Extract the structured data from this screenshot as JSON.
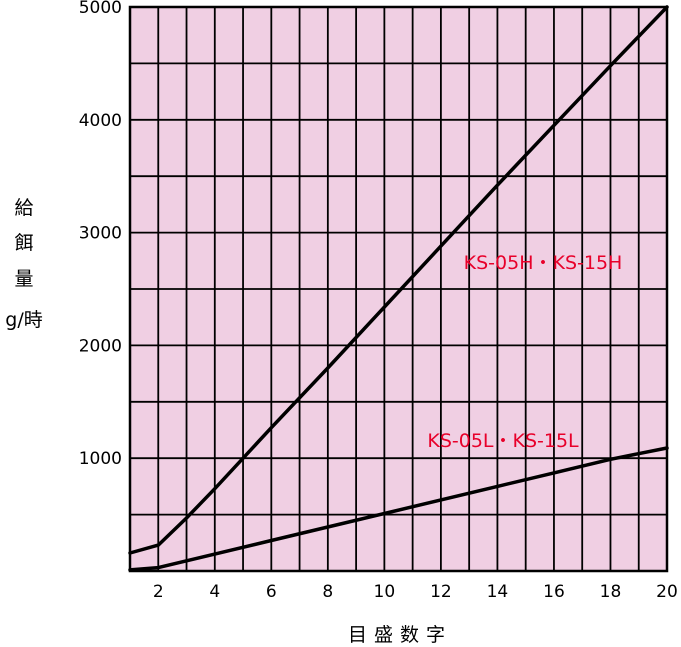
{
  "chart_data": {
    "type": "line",
    "xlabel": "目盛数字",
    "ylabel_lines": [
      "給",
      "餌",
      "量",
      "g/時"
    ],
    "xlim": [
      1,
      20
    ],
    "ylim": [
      0,
      5000
    ],
    "x_ticks": [
      2,
      4,
      6,
      8,
      10,
      12,
      14,
      16,
      18,
      20
    ],
    "y_ticks": [
      1000,
      2000,
      3000,
      4000,
      5000
    ],
    "grid": true,
    "plot_bg_color": "#f0cfe3",
    "series": [
      {
        "name": "KS-05H・KS-15H",
        "color": "#000000",
        "label_color": "#e8002a",
        "x": [
          1,
          2,
          3,
          4,
          6,
          8,
          10,
          12,
          14,
          16,
          18,
          20
        ],
        "y": [
          160,
          230,
          470,
          730,
          1270,
          1800,
          2340,
          2880,
          3420,
          3950,
          4480,
          5000
        ]
      },
      {
        "name": "KS-05L・KS-15L",
        "color": "#000000",
        "label_color": "#e8002a",
        "x": [
          1,
          2,
          4,
          6,
          8,
          10,
          12,
          14,
          16,
          18,
          20
        ],
        "y": [
          10,
          30,
          150,
          270,
          390,
          510,
          630,
          750,
          870,
          990,
          1090
        ]
      }
    ]
  }
}
